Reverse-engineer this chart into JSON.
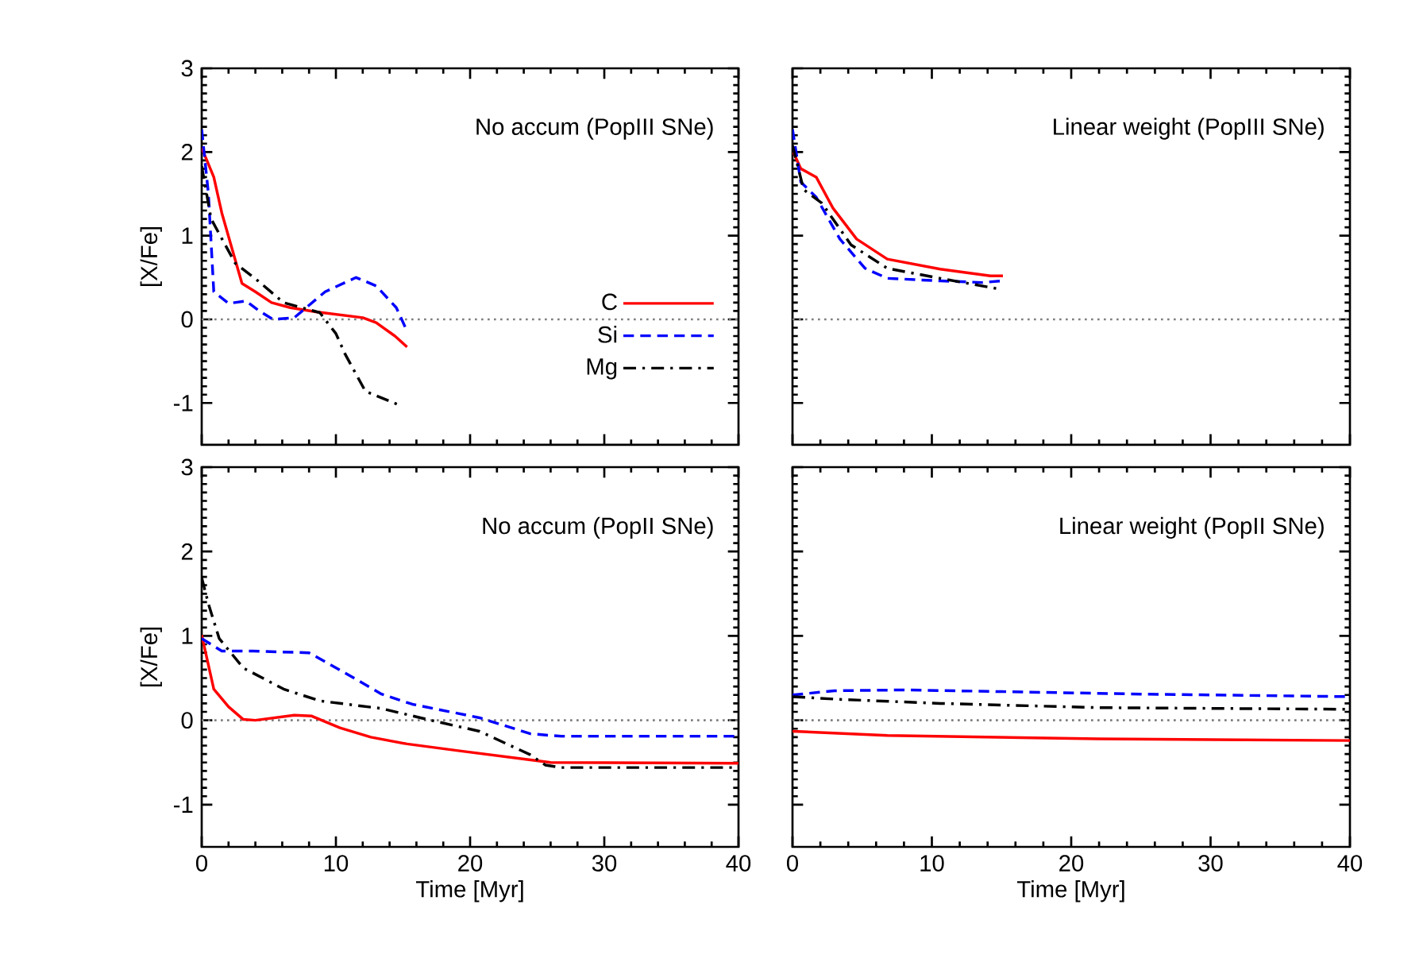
{
  "chart_data": [
    {
      "type": "line",
      "title": "No accum (PopIII SNe)",
      "ylabel": "[X/Fe]",
      "xlim": [
        0,
        40
      ],
      "ylim": [
        -1.5,
        3
      ],
      "xticks": [
        0,
        10,
        20,
        30,
        40
      ],
      "yticks": [
        -1,
        0,
        1,
        2,
        3
      ],
      "tick_labels": "y",
      "legend": "right",
      "grid": false,
      "ref_lines": [
        {
          "axis": "y",
          "value": 0,
          "color": "#808080",
          "line_style": "dotted"
        }
      ],
      "series": [
        {
          "name": "C",
          "color": "#ff0000",
          "line_style": "solid",
          "x": [
            0,
            0.9,
            1.5,
            3.0,
            4.0,
            5.2,
            6.6,
            8.5,
            12,
            13,
            14.4,
            15.3
          ],
          "values": [
            2.05,
            1.7,
            1.27,
            0.43,
            0.33,
            0.2,
            0.14,
            0.09,
            0.02,
            -0.04,
            -0.2,
            -0.33
          ]
        },
        {
          "name": "Si",
          "color": "#0000ff",
          "line_style": "dashed",
          "x": [
            0,
            0.5,
            0.9,
            2,
            3.3,
            4.2,
            5.3,
            6.9,
            9.2,
            11.5,
            13,
            14.5,
            15.3
          ],
          "values": [
            2.27,
            1.5,
            0.33,
            0.19,
            0.22,
            0.11,
            0,
            0.02,
            0.33,
            0.5,
            0.4,
            0.14,
            -0.14
          ]
        },
        {
          "name": "Mg",
          "color": "#000000",
          "line_style": "dashdot",
          "x": [
            0,
            0.7,
            2.5,
            4.2,
            6.1,
            8.8,
            10,
            10.7,
            12.2,
            14.8
          ],
          "values": [
            1.83,
            1.2,
            0.67,
            0.46,
            0.2,
            0.08,
            -0.17,
            -0.42,
            -0.86,
            -1.03
          ]
        }
      ]
    },
    {
      "type": "line",
      "title": "Linear weight (PopIII SNe)",
      "xlim": [
        0,
        40
      ],
      "ylim": [
        -1.5,
        3
      ],
      "xticks": [
        0,
        10,
        20,
        30,
        40
      ],
      "yticks": [
        -1,
        0,
        1,
        2,
        3
      ],
      "tick_labels": false,
      "grid": false,
      "ref_lines": [
        {
          "axis": "y",
          "value": 0,
          "color": "#808080",
          "line_style": "dotted"
        }
      ],
      "series": [
        {
          "color": "#ff0000",
          "line_style": "solid",
          "x": [
            0,
            0.6,
            1.7,
            2.9,
            4.6,
            6.8,
            10.6,
            14.2,
            15.1
          ],
          "values": [
            2.02,
            1.8,
            1.7,
            1.33,
            0.96,
            0.72,
            0.6,
            0.52,
            0.52
          ]
        },
        {
          "color": "#0000ff",
          "line_style": "dashed",
          "x": [
            0,
            0.6,
            1.7,
            3.4,
            5.2,
            6.8,
            10.6,
            13.6,
            15.1
          ],
          "values": [
            2.27,
            1.64,
            1.46,
            0.96,
            0.61,
            0.49,
            0.46,
            0.44,
            0.46
          ]
        },
        {
          "color": "#000000",
          "line_style": "dashdot",
          "x": [
            0,
            0.8,
            2.1,
            4.2,
            6.8,
            10.6,
            14.9
          ],
          "values": [
            2.08,
            1.55,
            1.39,
            0.89,
            0.61,
            0.49,
            0.36
          ]
        }
      ]
    },
    {
      "type": "line",
      "title": "No accum (PopII SNe)",
      "xlabel": "Time [Myr]",
      "ylabel": "[X/Fe]",
      "xlim": [
        0,
        40
      ],
      "ylim": [
        -1.5,
        3
      ],
      "xticks": [
        0,
        10,
        20,
        30,
        40
      ],
      "yticks": [
        -1,
        0,
        1,
        2,
        3
      ],
      "grid": false,
      "ref_lines": [
        {
          "axis": "y",
          "value": 0,
          "color": "#808080",
          "line_style": "dotted"
        }
      ],
      "series": [
        {
          "color": "#ff0000",
          "line_style": "solid",
          "x": [
            0,
            0.9,
            2,
            3.1,
            4,
            6.9,
            8.2,
            10.3,
            12.6,
            15.3,
            19.1,
            24.5,
            26,
            40
          ],
          "values": [
            1.01,
            0.37,
            0.16,
            0.01,
            0,
            0.06,
            0.05,
            -0.09,
            -0.2,
            -0.28,
            -0.36,
            -0.47,
            -0.5,
            -0.51
          ]
        },
        {
          "color": "#0000ff",
          "line_style": "dashed",
          "x": [
            0,
            1.5,
            3.8,
            8,
            10.7,
            13.4,
            15.7,
            20.7,
            24.5,
            26.8,
            40
          ],
          "values": [
            0.97,
            0.82,
            0.82,
            0.8,
            0.56,
            0.31,
            0.19,
            0.03,
            -0.16,
            -0.19,
            -0.19
          ]
        },
        {
          "color": "#000000",
          "line_style": "dashdot",
          "x": [
            0,
            0.5,
            1.3,
            3.1,
            6.1,
            8.8,
            13.4,
            16.8,
            20.7,
            24.5,
            25.6,
            26.8,
            40
          ],
          "values": [
            1.69,
            1.38,
            0.97,
            0.62,
            0.37,
            0.23,
            0.14,
            0.01,
            -0.13,
            -0.41,
            -0.53,
            -0.56,
            -0.56
          ]
        }
      ]
    },
    {
      "type": "line",
      "title": "Linear weight (PopII SNe)",
      "xlabel": "Time [Myr]",
      "xlim": [
        0,
        40
      ],
      "ylim": [
        -1.5,
        3
      ],
      "xticks": [
        0,
        10,
        20,
        30,
        40
      ],
      "yticks": [
        -1,
        0,
        1,
        2,
        3
      ],
      "tick_labels": "x",
      "grid": false,
      "ref_lines": [
        {
          "axis": "y",
          "value": 0,
          "color": "#808080",
          "line_style": "dotted"
        }
      ],
      "series": [
        {
          "color": "#ff0000",
          "line_style": "solid",
          "x": [
            0,
            6.8,
            21.9,
            40
          ],
          "values": [
            -0.13,
            -0.18,
            -0.22,
            -0.24
          ]
        },
        {
          "color": "#0000ff",
          "line_style": "dashed",
          "x": [
            0,
            3,
            8,
            15,
            25,
            40
          ],
          "values": [
            0.3,
            0.35,
            0.36,
            0.34,
            0.31,
            0.28
          ]
        },
        {
          "color": "#000000",
          "line_style": "dashdot",
          "x": [
            0,
            3.1,
            10.6,
            21.9,
            40
          ],
          "values": [
            0.28,
            0.25,
            0.2,
            0.15,
            0.13
          ]
        }
      ]
    }
  ]
}
